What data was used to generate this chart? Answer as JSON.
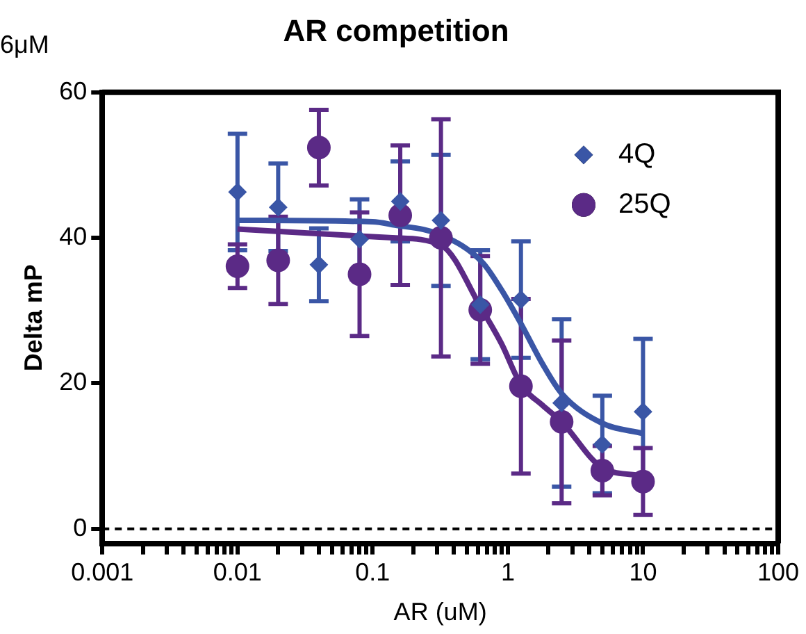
{
  "chart_data": {
    "type": "scatter",
    "title": "AR competition",
    "xlabel": "AR (uM)",
    "ylabel": "Delta mP",
    "annotations": [
      "6μM"
    ],
    "log": "x",
    "grid": false,
    "legend": "top right",
    "xlim": [
      0.001,
      100
    ],
    "xticks": [
      0.001,
      {
        "value": 0.002,
        "label": null
      },
      {
        "value": 0.003,
        "label": null
      },
      {
        "value": 0.004,
        "label": null
      },
      {
        "value": 0.005,
        "label": null
      },
      {
        "value": 0.006,
        "label": null
      },
      {
        "value": 0.007,
        "label": null
      },
      {
        "value": 0.008,
        "label": null
      },
      {
        "value": 0.009,
        "label": null
      },
      0.01,
      {
        "value": 0.02,
        "label": null
      },
      {
        "value": 0.03,
        "label": null
      },
      {
        "value": 0.04,
        "label": null
      },
      {
        "value": 0.05,
        "label": null
      },
      {
        "value": 0.06,
        "label": null
      },
      {
        "value": 0.07,
        "label": null
      },
      {
        "value": 0.08,
        "label": null
      },
      {
        "value": 0.09,
        "label": null
      },
      0.1,
      {
        "value": 0.2,
        "label": null
      },
      {
        "value": 0.3,
        "label": null
      },
      {
        "value": 0.4,
        "label": null
      },
      {
        "value": 0.5,
        "label": null
      },
      {
        "value": 0.6,
        "label": null
      },
      {
        "value": 0.7,
        "label": null
      },
      {
        "value": 0.8,
        "label": null
      },
      {
        "value": 0.9,
        "label": null
      },
      1,
      {
        "value": 2,
        "label": null
      },
      {
        "value": 3,
        "label": null
      },
      {
        "value": 4,
        "label": null
      },
      {
        "value": 5,
        "label": null
      },
      {
        "value": 6,
        "label": null
      },
      {
        "value": 7,
        "label": null
      },
      {
        "value": 8,
        "label": null
      },
      {
        "value": 9,
        "label": null
      },
      10,
      {
        "value": 20,
        "label": null
      },
      {
        "value": 30,
        "label": null
      },
      {
        "value": 40,
        "label": null
      },
      {
        "value": 50,
        "label": null
      },
      {
        "value": 60,
        "label": null
      },
      {
        "value": 70,
        "label": null
      },
      {
        "value": 80,
        "label": null
      },
      {
        "value": 90,
        "label": null
      },
      100
    ],
    "ylim": [
      -2,
      60
    ],
    "yticks": [
      0,
      20,
      40,
      60
    ],
    "ref_lines": [
      {
        "axis": "y",
        "value": 0,
        "color": "#000000",
        "line_style": "dashed"
      }
    ],
    "series": [
      {
        "name": "4Q",
        "marker": "diamond",
        "color": "#3a56a6",
        "x": [
          0.01,
          0.02,
          0.04,
          0.08,
          0.16,
          0.32,
          0.625,
          1.25,
          2.5,
          5,
          10
        ],
        "values": [
          46.3,
          44.2,
          36.3,
          39.8,
          45,
          42.4,
          30.8,
          31.5,
          17.3,
          11.6,
          16.1
        ],
        "errors": [
          8,
          6,
          5,
          5.5,
          5.5,
          9,
          7.5,
          8,
          11.5,
          6.7,
          10
        ]
      },
      {
        "name": "25Q",
        "marker": "circle",
        "color": "#5b2a86",
        "x": [
          0.01,
          0.02,
          0.04,
          0.08,
          0.16,
          0.32,
          0.625,
          1.25,
          2.5,
          5,
          10
        ],
        "values": [
          36.1,
          36.9,
          52.4,
          35,
          43.1,
          40,
          30.1,
          19.6,
          14.7,
          8,
          6.5
        ],
        "errors": [
          3,
          6,
          5.2,
          8.5,
          9.6,
          16.3,
          7.4,
          12,
          11.2,
          3.4,
          4.6
        ]
      },
      {
        "type": "line",
        "marker": "none",
        "color": "#3a56a6",
        "x": [
          0.01,
          0.1,
          0.14,
          0.32,
          0.65,
          0.9,
          1.25,
          1.8,
          2.5,
          5,
          10
        ],
        "values": [
          42.4,
          42.2,
          41.8,
          40.4,
          36.6,
          32.8,
          28.2,
          22.7,
          18.6,
          14.5,
          13.1
        ]
      },
      {
        "type": "line",
        "marker": "none",
        "color": "#5b2a86",
        "x": [
          0.01,
          0.14,
          0.32,
          0.65,
          0.9,
          1.25,
          1.8,
          2.5,
          5,
          10
        ],
        "values": [
          41.2,
          40,
          39,
          30,
          25.4,
          19.8,
          17,
          14.7,
          8.4,
          7.3
        ]
      }
    ]
  }
}
